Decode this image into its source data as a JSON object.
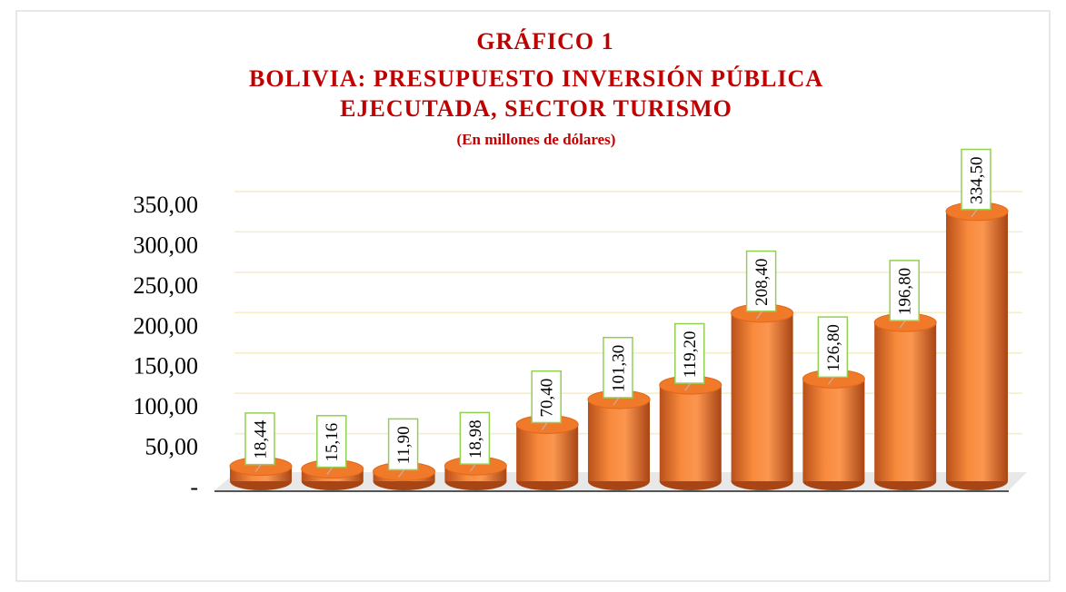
{
  "chart_data": {
    "type": "bar",
    "title": [
      "GRÁFICO 1",
      "BOLIVIA: PRESUPUESTO INVERSIÓN PÚBLICA",
      "EJECUTADA, SECTOR TURISMO"
    ],
    "subtitle": "(En millones de dólares)",
    "categories": [
      null,
      null,
      null,
      null,
      null,
      null,
      null,
      null,
      null,
      null,
      null
    ],
    "values": [
      18.44,
      15.16,
      11.9,
      18.98,
      70.4,
      101.3,
      119.2,
      208.4,
      126.8,
      196.8,
      334.5
    ],
    "value_labels": [
      "18,44",
      "15,16",
      "11,90",
      "18,98",
      "70,40",
      "101,30",
      "119,20",
      "208,40",
      "126,80",
      "196,80",
      "334,50"
    ],
    "color": "#f07a2a",
    "ylim": [
      0,
      350
    ],
    "yticks": [
      {
        "value": 0,
        "label": "-"
      },
      {
        "value": 50,
        "label": "50,00"
      },
      {
        "value": 100,
        "label": "100,00"
      },
      {
        "value": 150,
        "label": "150,00"
      },
      {
        "value": 200,
        "label": "200,00"
      },
      {
        "value": 250,
        "label": "250,00"
      },
      {
        "value": 300,
        "label": "300,00"
      },
      {
        "value": 350,
        "label": "350,00"
      }
    ],
    "grid": true
  }
}
